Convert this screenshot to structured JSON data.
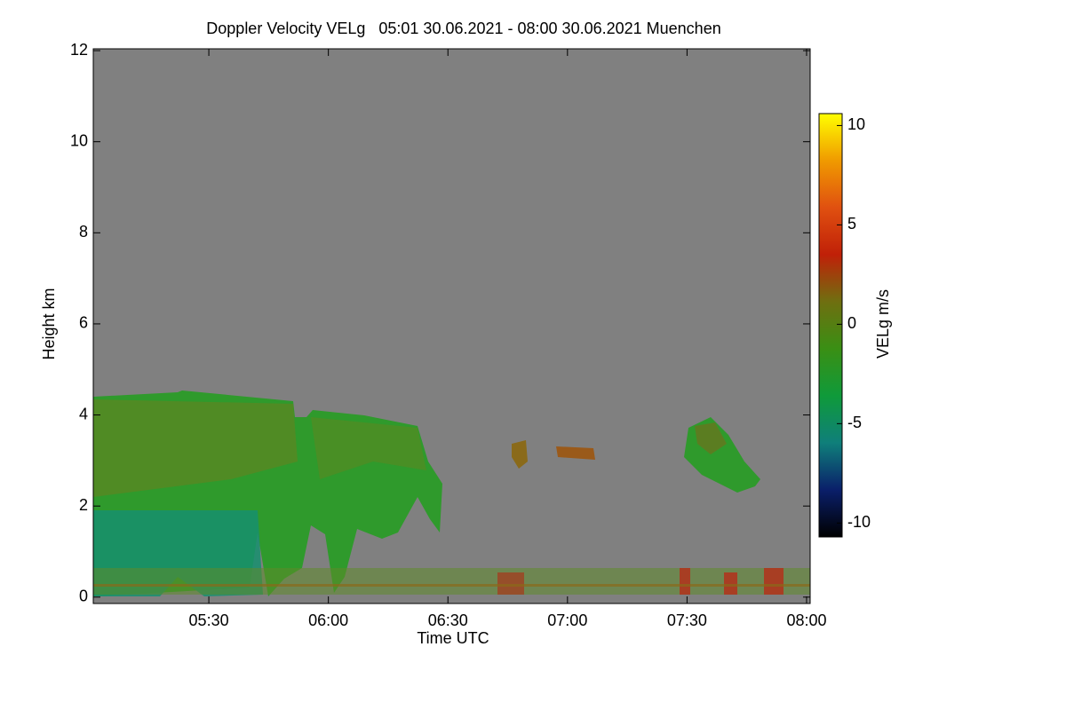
{
  "chart_data": {
    "type": "heatmap",
    "title": "Doppler Velocity VELg   05:01 30.06.2021 - 08:00 30.06.2021 Muenchen",
    "xlabel": "Time UTC",
    "ylabel": "Height km",
    "xlim": [
      5.0167,
      8.015
    ],
    "xticks": [
      {
        "value": 5.5,
        "label": "05:30"
      },
      {
        "value": 6,
        "label": "06:00"
      },
      {
        "value": 6.5,
        "label": "06:30"
      },
      {
        "value": 7,
        "label": "07:00"
      },
      {
        "value": 7.5,
        "label": "07:30"
      },
      {
        "value": 8,
        "label": "08:00"
      }
    ],
    "ylim": [
      -0.14,
      12.04
    ],
    "yticks": [
      0,
      2,
      4,
      6,
      8,
      10,
      12
    ],
    "background": "#808080",
    "colorbar": {
      "label": "VELg m/s",
      "lim": [
        -10.7,
        10.6
      ],
      "ticks": [
        -10,
        -5,
        0,
        5,
        10
      ],
      "colors": [
        "#000000",
        "#0a1f6a",
        "#0f7f7a",
        "#0f9a3a",
        "#3a8f14",
        "#6f6f10",
        "#c02008",
        "#e05010",
        "#f09a00",
        "#ffff00"
      ]
    }
  }
}
